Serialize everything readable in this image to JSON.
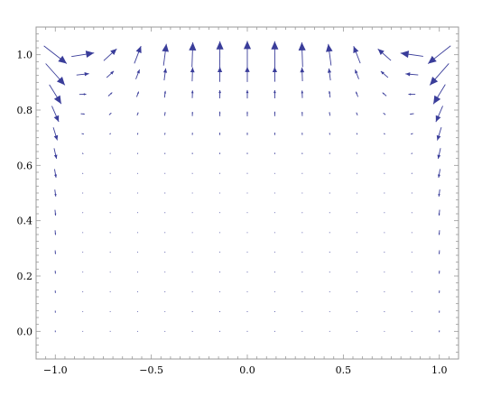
{
  "chart_data": {
    "type": "vector_field",
    "title": "",
    "xlabel": "",
    "ylabel": "",
    "xlim": [
      -1.1,
      1.1
    ],
    "ylim": [
      -0.1,
      1.1
    ],
    "x_tick_values": [
      -1.0,
      -0.5,
      0.0,
      0.5,
      1.0
    ],
    "x_tick_labels": [
      "−1.0",
      "−0.5",
      "0.0",
      "0.5",
      "1.0"
    ],
    "y_tick_values": [
      0.0,
      0.2,
      0.4,
      0.6,
      0.8,
      1.0
    ],
    "y_tick_labels": [
      "0.0",
      "0.2",
      "0.4",
      "0.6",
      "0.8",
      "1.0"
    ],
    "grid": false,
    "frame": true,
    "arrow_color": "#3a3d9a",
    "frame_color": "#999999",
    "grid_x": [
      -1.0,
      -0.857,
      -0.714,
      -0.571,
      -0.429,
      -0.286,
      -0.143,
      0.0,
      0.143,
      0.286,
      0.429,
      0.571,
      0.714,
      0.857,
      1.0
    ],
    "grid_y": [
      0.0,
      0.071,
      0.143,
      0.214,
      0.286,
      0.357,
      0.429,
      0.5,
      0.571,
      0.643,
      0.714,
      0.786,
      0.857,
      0.929,
      1.0
    ],
    "field": "lid-driven cavity flow: velocity vectors strongest along the top (y = 1.0) and down the side walls, near zero in the interior"
  }
}
